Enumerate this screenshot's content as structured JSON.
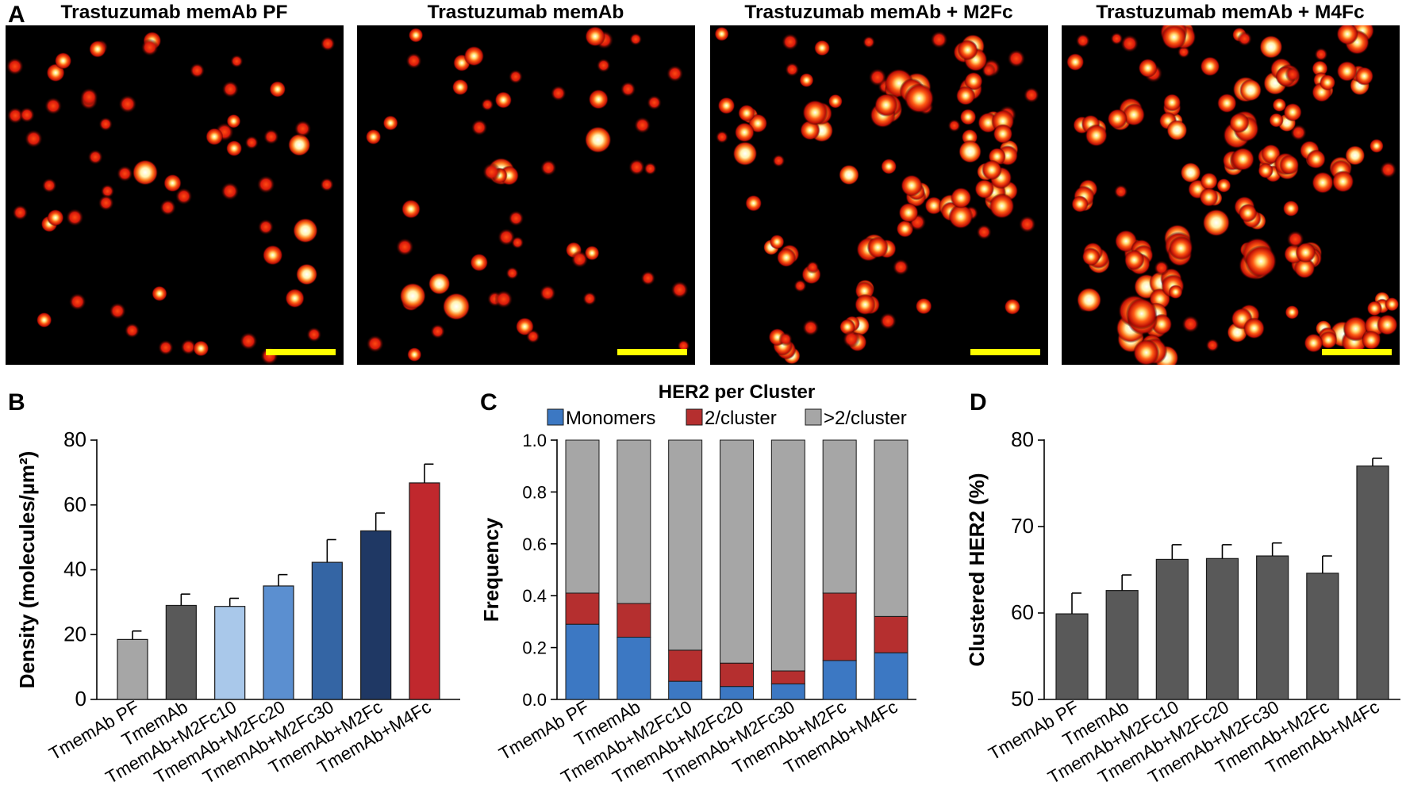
{
  "panel_labels": {
    "a": "A",
    "b": "B",
    "c": "C",
    "d": "D"
  },
  "microscopy": {
    "panels": [
      {
        "title": "Trastuzumab memAb PF",
        "scale_bar_color": "#ffff00"
      },
      {
        "title": "Trastuzumab memAb",
        "scale_bar_color": "#ffff00"
      },
      {
        "title": "Trastuzumab memAb + M2Fc",
        "scale_bar_color": "#ffff00"
      },
      {
        "title": "Trastuzumab memAb + M4Fc",
        "scale_bar_color": "#ffff00"
      }
    ]
  },
  "chart_data": [
    {
      "id": "B",
      "type": "bar",
      "title": "",
      "xlabel": "",
      "ylabel": "Density (molecules/µm²)",
      "ylim": [
        0,
        80
      ],
      "yticks": [
        0,
        20,
        40,
        60,
        80
      ],
      "categories": [
        "TmemAb PF",
        "TmemAb",
        "TmemAb+M2Fc10",
        "TmemAb+M2Fc20",
        "TmemAb+M2Fc30",
        "TmemAb+M2Fc",
        "TmemAb+M4Fc"
      ],
      "values": [
        18.5,
        29,
        28.7,
        35,
        42.3,
        52,
        66.8
      ],
      "errors": [
        2.6,
        3.5,
        2.5,
        3.5,
        7,
        5.5,
        5.8
      ],
      "colors": [
        "#a6a6a6",
        "#595959",
        "#a9c8ea",
        "#5b8fd0",
        "#3465a4",
        "#1f3864",
        "#c0282d"
      ]
    },
    {
      "id": "C",
      "type": "bar",
      "stacked": true,
      "title": "HER2 per Cluster",
      "xlabel": "",
      "ylabel": "Frequency",
      "ylim": [
        0,
        1.0
      ],
      "yticks": [
        "0.0",
        "0.2",
        "0.4",
        "0.6",
        "0.8",
        "1.0"
      ],
      "legend_position": "top",
      "categories": [
        "TmemAb PF",
        "TmemAb",
        "TmemAb+M2Fc10",
        "TmemAb+M2Fc20",
        "TmemAb+M2Fc30",
        "TmemAb+M2Fc",
        "TmemAb+M4Fc"
      ],
      "series": [
        {
          "name": "Monomers",
          "color": "#3c78c3",
          "values": [
            0.29,
            0.24,
            0.07,
            0.05,
            0.06,
            0.15,
            0.18
          ]
        },
        {
          "name": "2/cluster",
          "color": "#b52f2f",
          "values": [
            0.12,
            0.13,
            0.12,
            0.09,
            0.05,
            0.26,
            0.14
          ]
        },
        {
          "name": ">2/cluster",
          "color": "#a6a6a6",
          "values": [
            0.59,
            0.63,
            0.81,
            0.86,
            0.89,
            0.59,
            0.68
          ]
        }
      ]
    },
    {
      "id": "D",
      "type": "bar",
      "title": "",
      "xlabel": "",
      "ylabel": "Clustered HER2 (%)",
      "ylim": [
        50,
        80
      ],
      "yticks": [
        50,
        60,
        70,
        80
      ],
      "categories": [
        "TmemAb PF",
        "TmemAb",
        "TmemAb+M2Fc10",
        "TmemAb+M2Fc20",
        "TmemAb+M2Fc30",
        "TmemAb+M2Fc",
        "TmemAb+M4Fc"
      ],
      "values": [
        59.9,
        62.6,
        66.2,
        66.3,
        66.6,
        64.6,
        77
      ],
      "errors": [
        2.4,
        1.8,
        1.7,
        1.6,
        1.5,
        2.0,
        0.9
      ],
      "colors": [
        "#595959",
        "#595959",
        "#595959",
        "#595959",
        "#595959",
        "#595959",
        "#595959"
      ]
    }
  ]
}
